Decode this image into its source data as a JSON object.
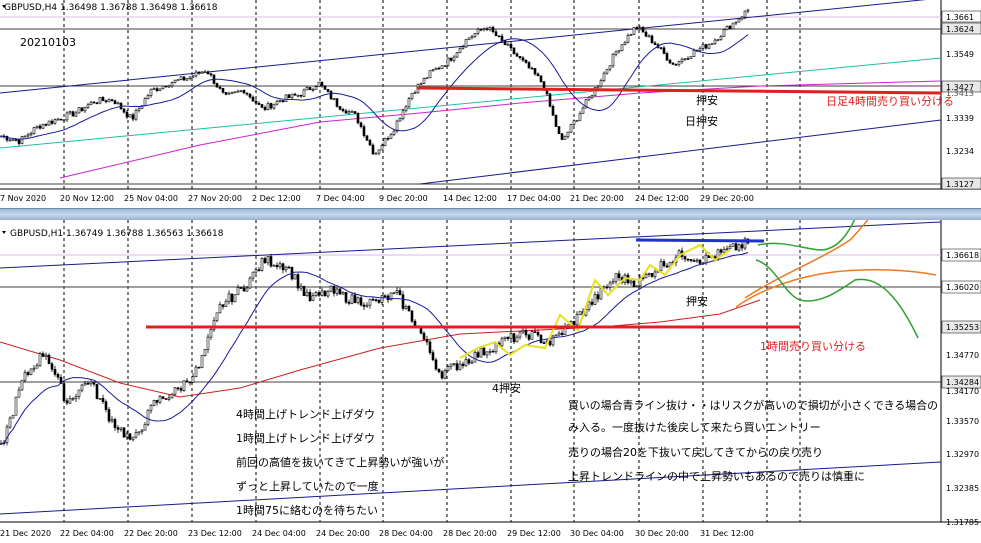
{
  "top": {
    "header": "GBPUSD,H4  1.36498 1.36788 1.36498 1.36618",
    "date_label": "20210103",
    "price_labels": [
      "1.3661",
      "1.3624",
      "1.3549",
      "1.3427",
      "1.3413",
      "1.3339",
      "1.3234",
      "1.3127"
    ],
    "time_labels": [
      "7 Nov 2020",
      "20 Nov 12:00",
      "25 Nov 04:00",
      "27 Nov 20:00",
      "2 Dec 12:00",
      "7 Dec 04:00",
      "9 Dec 20:00",
      "14 Dec 12:00",
      "17 Dec 04:00",
      "21 Dec 20:00",
      "24 Dec 12:00",
      "29 Dec 20:00"
    ],
    "annotations": {
      "oshiyasu": "押安",
      "hi_oshiyasu": "日押安",
      "daily_4h": "日足4時間売り買い分ける"
    }
  },
  "bottom": {
    "header": "GBPUSD,H1  1.36749 1.36788 1.36563 1.36618",
    "price_labels": [
      "1.36618",
      "1.36020",
      "1.35253",
      "1.34770",
      "1.34284",
      "1.34170",
      "1.33570",
      "1.32970",
      "1.32385",
      "1.31785"
    ],
    "time_labels": [
      "21 Dec 2020",
      "22 Dec 04:00",
      "22 Dec 20:00",
      "23 Dec 12:00",
      "24 Dec 04:00",
      "24 Dec 20:00",
      "28 Dec 04:00",
      "28 Dec 20:00",
      "29 Dec 12:00",
      "30 Dec 04:00",
      "30 Dec 20:00",
      "31 Dec 12:00"
    ],
    "annotations": {
      "oshiyasu": "押安",
      "yon_oshiyasu": "4押安",
      "h1_split": "1時間売り買い分ける"
    },
    "notes_left": [
      "4時間上げトレンド上げダウ",
      "1時間上げトレンド上げダウ",
      "前回の高値を抜いてきて上昇勢いが強いが",
      "ずっと上昇していたので一度",
      "1時間75に絡むのを待ちたい"
    ],
    "notes_right": [
      "買いの場合青ライン抜け・・はリスクが高いので損切が小さくできる場合の",
      "み入る。一度抜けた後戻して来たら買いエントリー",
      "売りの場合20を下抜いて戻してきてからの戻り売り",
      "上昇トレンドラインの中で上昇勢いもあるので売りは慎重に"
    ]
  },
  "chart_data": [
    {
      "type": "candlestick",
      "title": "GBPUSD,H4",
      "ohlc_last": {
        "open": 1.36498,
        "high": 1.36788,
        "low": 1.36498,
        "close": 1.36618
      },
      "ylim": [
        1.312,
        1.369
      ],
      "x": [
        "7 Nov 2020",
        "20 Nov 12:00",
        "25 Nov 04:00",
        "27 Nov 20:00",
        "2 Dec 12:00",
        "7 Dec 04:00",
        "9 Dec 20:00",
        "14 Dec 12:00",
        "17 Dec 04:00",
        "21 Dec 20:00",
        "24 Dec 12:00",
        "29 Dec 20:00"
      ],
      "close_path": [
        1.328,
        1.3265,
        1.331,
        1.333,
        1.335,
        1.3385,
        1.339,
        1.333,
        1.3415,
        1.344,
        1.3455,
        1.348,
        1.3395,
        1.342,
        1.336,
        1.339,
        1.3405,
        1.344,
        1.3375,
        1.334,
        1.3225,
        1.33,
        1.341,
        1.347,
        1.351,
        1.3575,
        1.361,
        1.3555,
        1.35,
        1.344,
        1.326,
        1.335,
        1.344,
        1.354,
        1.361,
        1.356,
        1.3495,
        1.353,
        1.356,
        1.361,
        1.366
      ],
      "horizontal_levels": [
        1.3661,
        1.3624,
        1.3427,
        1.3413,
        1.3127
      ],
      "colors": {
        "support_line": "#e02020",
        "channel": "#1a1a8c",
        "ma_fast": "#1a1a9a",
        "ma_slow": "#cc22cc",
        "ma_long": "#20c0a0"
      }
    },
    {
      "type": "candlestick",
      "title": "GBPUSD,H1",
      "ohlc_last": {
        "open": 1.36749,
        "high": 1.36788,
        "low": 1.36563,
        "close": 1.36618
      },
      "ylim": [
        1.317,
        1.37
      ],
      "x": [
        "21 Dec 2020",
        "22 Dec 04:00",
        "22 Dec 20:00",
        "23 Dec 12:00",
        "24 Dec 04:00",
        "24 Dec 20:00",
        "28 Dec 04:00",
        "28 Dec 20:00",
        "29 Dec 12:00",
        "30 Dec 04:00",
        "30 Dec 20:00",
        "31 Dec 12:00"
      ],
      "close_path": [
        1.33,
        1.342,
        1.347,
        1.338,
        1.342,
        1.335,
        1.331,
        1.338,
        1.34,
        1.344,
        1.355,
        1.358,
        1.363,
        1.362,
        1.356,
        1.3575,
        1.356,
        1.3555,
        1.357,
        1.351,
        1.343,
        1.345,
        1.347,
        1.349,
        1.35,
        1.3485,
        1.352,
        1.356,
        1.36,
        1.359,
        1.362,
        1.364,
        1.363,
        1.3645,
        1.366
      ],
      "horizontal_levels": [
        1.36618,
        1.3602,
        1.35253,
        1.34284
      ],
      "colors": {
        "support_line": "#e02020",
        "resistance_line": "#2030d0",
        "ma20": "#1a1a9a",
        "ma75": "#cc2020",
        "swing": "#e8e020",
        "scenario_up": "#f07820",
        "scenario_down": "#30a030"
      }
    }
  ]
}
